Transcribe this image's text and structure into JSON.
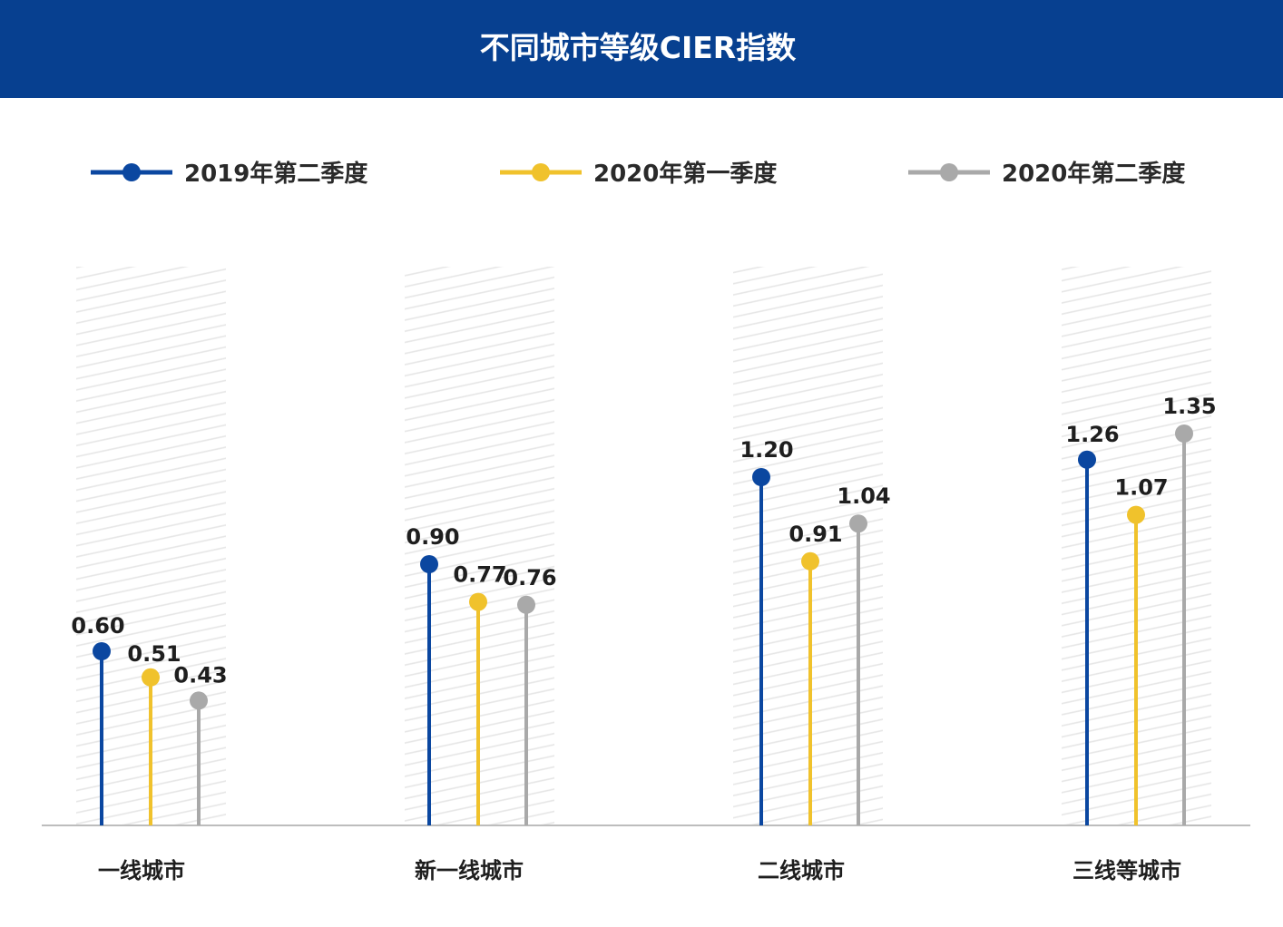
{
  "header": {
    "title": "不同城市等级CIER指数"
  },
  "colors": {
    "header_bg": "#074090",
    "series": [
      "#0b47a0",
      "#f0c22c",
      "#a9a9a9"
    ],
    "axis": "#bdbdbd",
    "hatch": "#e6e6e6"
  },
  "chart_data": {
    "type": "lollipop",
    "title": "不同城市等级CIER指数",
    "categories": [
      "一线城市",
      "新一线城市",
      "二线城市",
      "三线等城市"
    ],
    "series": [
      {
        "name": "2019年第二季度",
        "values": [
          0.6,
          0.9,
          1.2,
          1.26
        ]
      },
      {
        "name": "2020年第一季度",
        "values": [
          0.51,
          0.77,
          0.91,
          1.07
        ]
      },
      {
        "name": "2020年第二季度",
        "values": [
          0.43,
          0.76,
          1.04,
          1.35
        ]
      }
    ],
    "value_labels": [
      [
        "0.60",
        "0.90",
        "1.20",
        "1.26"
      ],
      [
        "0.51",
        "0.77",
        "0.91",
        "1.07"
      ],
      [
        "0.43",
        "0.76",
        "1.04",
        "1.35"
      ]
    ],
    "ylim": [
      0,
      1.7
    ],
    "legend_position": "top",
    "grid": false
  }
}
